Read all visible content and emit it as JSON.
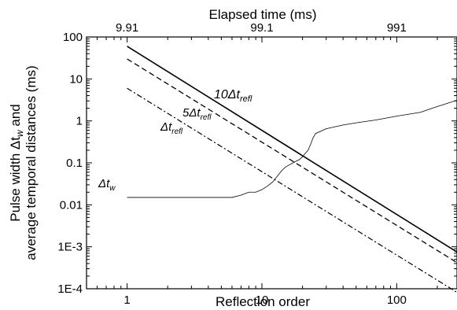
{
  "chart_data": {
    "type": "line",
    "xlabel": "Reflection order",
    "ylabel_line1": "Pulse width",
    "ylabel_sym": "Δt",
    "ylabel_sub": "w",
    "ylabel_rest": " and",
    "ylabel_line2": "average temporal distances (ms)",
    "top_axis_label": "Elapsed time (ms)",
    "x_scale": "log",
    "y_scale": "log",
    "xlim": [
      0.5,
      280
    ],
    "ylim": [
      0.0001,
      100
    ],
    "grid": false,
    "x_ticks": [
      {
        "value": 1,
        "label": "1"
      },
      {
        "value": 10,
        "label": "10"
      },
      {
        "value": 100,
        "label": "100"
      }
    ],
    "y_ticks": [
      {
        "value": 100,
        "label": "100"
      },
      {
        "value": 10,
        "label": "10"
      },
      {
        "value": 1,
        "label": "1"
      },
      {
        "value": 0.1,
        "label": "0.1"
      },
      {
        "value": 0.01,
        "label": "0.01"
      },
      {
        "value": 0.001,
        "label": "1E-3"
      },
      {
        "value": 0.0001,
        "label": "1E-4"
      }
    ],
    "top_ticks": [
      {
        "reflection_order": 1,
        "label": "9.91"
      },
      {
        "reflection_order": 10,
        "label": "99.1"
      },
      {
        "reflection_order": 100,
        "label": "991"
      }
    ],
    "series": [
      {
        "name": "10Δt_refl",
        "label_main": "10Δt",
        "label_sub": "refl",
        "style": "solid",
        "x": [
          1,
          280
        ],
        "y": [
          60,
          0.00075
        ]
      },
      {
        "name": "5Δt_refl",
        "label_main": "5Δt",
        "label_sub": "refl",
        "style": "dashed",
        "x": [
          1,
          280
        ],
        "y": [
          30,
          0.00042
        ]
      },
      {
        "name": "Δt_refl",
        "label_main": "Δt",
        "label_sub": "refl",
        "style": "dashdot",
        "x": [
          1,
          280
        ],
        "y": [
          6,
          8.2e-05
        ]
      },
      {
        "name": "Δt_w",
        "label_main": "Δt",
        "label_sub": "w",
        "style": "thin",
        "x": [
          1,
          2,
          4,
          6,
          7,
          8,
          9,
          10,
          11,
          12,
          13,
          14,
          15,
          16,
          17,
          18,
          19,
          20,
          21,
          22,
          23,
          24,
          25,
          30,
          40,
          50,
          70,
          100,
          150,
          200,
          280
        ],
        "y": [
          0.015,
          0.015,
          0.015,
          0.015,
          0.017,
          0.02,
          0.02,
          0.023,
          0.028,
          0.035,
          0.048,
          0.065,
          0.08,
          0.09,
          0.1,
          0.11,
          0.12,
          0.14,
          0.17,
          0.2,
          0.28,
          0.4,
          0.5,
          0.65,
          0.8,
          0.9,
          1.05,
          1.3,
          1.6,
          2.2,
          3.1
        ]
      }
    ]
  }
}
